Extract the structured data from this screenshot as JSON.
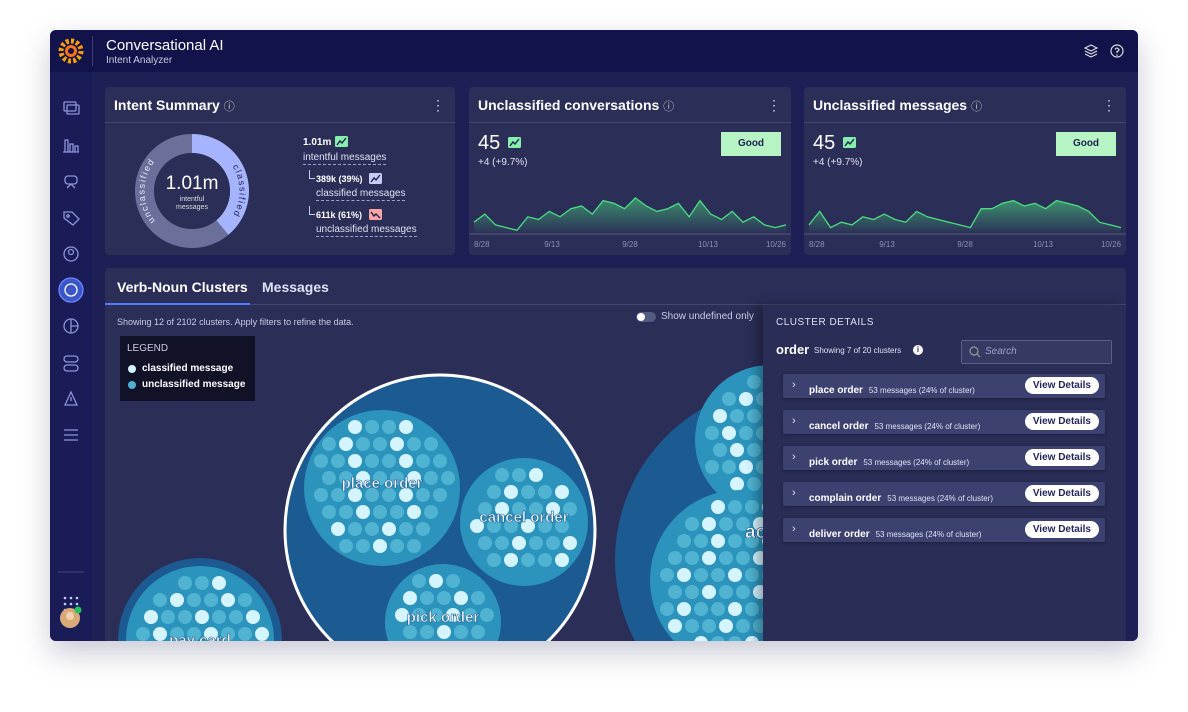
{
  "header": {
    "title": "Conversational AI",
    "subtitle": "Intent Analyzer"
  },
  "summary": {
    "title": "Intent Summary",
    "center_value": "1.01m",
    "center_caption": [
      "intentful",
      "messages"
    ],
    "arc_labels": [
      "classified",
      "unclassified"
    ],
    "total": "1.01m",
    "total_label": "intentful messages",
    "breakdown": [
      {
        "text": "389k (39%)",
        "percent": 39,
        "label": "classified messages",
        "color": "#a5b4fc"
      },
      {
        "text": "611k (61%)",
        "percent": 61,
        "label": "unclassified messages",
        "color": "#6b6f9a"
      }
    ]
  },
  "cards": [
    {
      "title": "Unclassified conversations",
      "value": "45",
      "change": "+4 (+9.7%)",
      "badge": "Good",
      "chart": {
        "type": "area",
        "color": "#4ade80",
        "xtick_labels": [
          "8/28",
          "9/13",
          "9/28",
          "10/13",
          "10/26"
        ],
        "ylim": [
          0,
          100
        ],
        "values": [
          20,
          35,
          15,
          10,
          5,
          30,
          25,
          40,
          30,
          45,
          50,
          35,
          60,
          55,
          45,
          65,
          50,
          40,
          45,
          55,
          30,
          60,
          35,
          25,
          40,
          20,
          30,
          15,
          10,
          15
        ]
      }
    },
    {
      "title": "Unclassified messages",
      "value": "45",
      "change": "+4 (+9.7%)",
      "badge": "Good",
      "chart": {
        "type": "area",
        "color": "#4ade80",
        "xtick_labels": [
          "8/28",
          "9/13",
          "9/28",
          "10/13",
          "10/26"
        ],
        "ylim": [
          0,
          100
        ],
        "values": [
          15,
          40,
          10,
          20,
          15,
          30,
          25,
          35,
          25,
          20,
          40,
          30,
          25,
          20,
          15,
          10,
          45,
          45,
          55,
          60,
          50,
          55,
          45,
          60,
          55,
          50,
          40,
          20,
          15,
          10
        ]
      }
    }
  ],
  "clusters": {
    "tabs": [
      "Verb-Noun Clusters",
      "Messages"
    ],
    "info": "Showing 12 of 2102 clusters. Apply filters to refine the data.",
    "toggle": "Show undefined only",
    "legend": {
      "title": "LEGEND",
      "items": [
        "classified message",
        "unclassified message"
      ]
    },
    "bubbles": [
      "place order",
      "cancel order",
      "pick order",
      "pay card",
      "acc"
    ]
  },
  "details": {
    "heading": "CLUSTER DETAILS",
    "name": "order",
    "count": "Showing 7 of 20 clusters",
    "search": "Search",
    "button": "View Details",
    "rows": [
      {
        "name": "place order",
        "info": "53 messages (24% of cluster)"
      },
      {
        "name": "cancel order",
        "info": "53 messages (24% of cluster)"
      },
      {
        "name": "pick order",
        "info": "53 messages (24% of cluster)"
      },
      {
        "name": "complain order",
        "info": "53 messages (24% of cluster)"
      },
      {
        "name": "deliver order",
        "info": "53 messages (24% of cluster)"
      }
    ]
  }
}
